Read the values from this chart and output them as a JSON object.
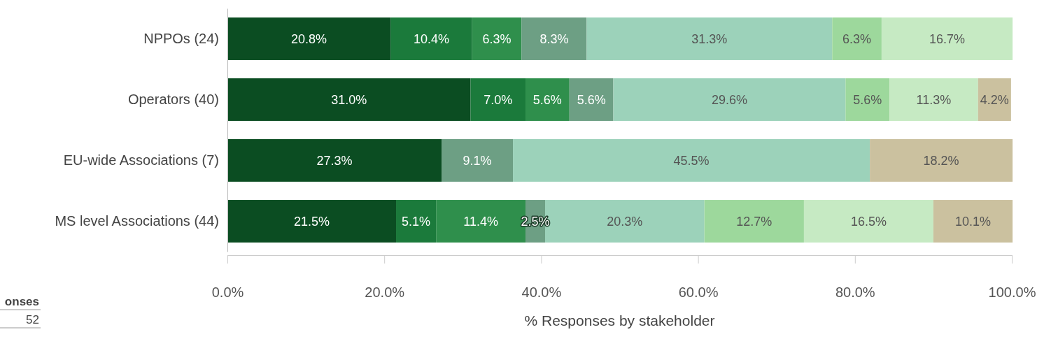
{
  "chart_data": {
    "type": "bar",
    "orientation": "horizontal",
    "stacked": true,
    "xlabel": "% Responses by stakeholder",
    "categories": [
      "NPPOs (24)",
      "Operators (40)",
      "EU-wide Associations (7)",
      "MS level Associations (44)"
    ],
    "xlim": [
      0,
      100
    ],
    "xticks": [
      {
        "value": 0,
        "label": "0.0%"
      },
      {
        "value": 20,
        "label": "20.0%"
      },
      {
        "value": 40,
        "label": "40.0%"
      },
      {
        "value": 60,
        "label": "60.0%"
      },
      {
        "value": 80,
        "label": "80.0%"
      },
      {
        "value": 100,
        "label": "100.0%"
      }
    ],
    "grid": false,
    "series": [
      {
        "color": "#0b4d22",
        "values": [
          20.8,
          31.0,
          27.3,
          21.5
        ],
        "value_labels": [
          "20.8%",
          "31.0%",
          "27.3%",
          "21.5%"
        ]
      },
      {
        "color": "#1b7a3b",
        "values": [
          10.4,
          7.0,
          null,
          5.1
        ],
        "value_labels": [
          "10.4%",
          "7.0%",
          null,
          "5.1%"
        ]
      },
      {
        "color": "#2f8f4c",
        "values": [
          6.3,
          5.6,
          null,
          11.4
        ],
        "value_labels": [
          "6.3%",
          "5.6%",
          null,
          "11.4%"
        ]
      },
      {
        "color": "#6d9f84",
        "values": [
          8.3,
          5.6,
          9.1,
          2.5
        ],
        "value_labels": [
          "8.3%",
          "5.6%",
          "9.1%",
          "2.5%"
        ]
      },
      {
        "color": "#9cd2ba",
        "values": [
          31.3,
          29.6,
          45.5,
          20.3
        ],
        "value_labels": [
          "31.3%",
          "29.6%",
          "45.5%",
          "20.3%"
        ]
      },
      {
        "color": "#9dd89c",
        "values": [
          6.3,
          5.6,
          null,
          12.7
        ],
        "value_labels": [
          "6.3%",
          "5.6%",
          null,
          "12.7%"
        ]
      },
      {
        "color": "#c6eac3",
        "values": [
          16.7,
          11.3,
          null,
          16.5
        ],
        "value_labels": [
          "16.7%",
          "11.3%",
          null,
          "16.5%"
        ]
      },
      {
        "color": "#cbc19f",
        "values": [
          null,
          4.2,
          18.2,
          10.1
        ],
        "value_labels": [
          null,
          "4.2%",
          "18.2%",
          "10.1%"
        ]
      }
    ],
    "annotations": [
      "onses",
      "52"
    ]
  }
}
